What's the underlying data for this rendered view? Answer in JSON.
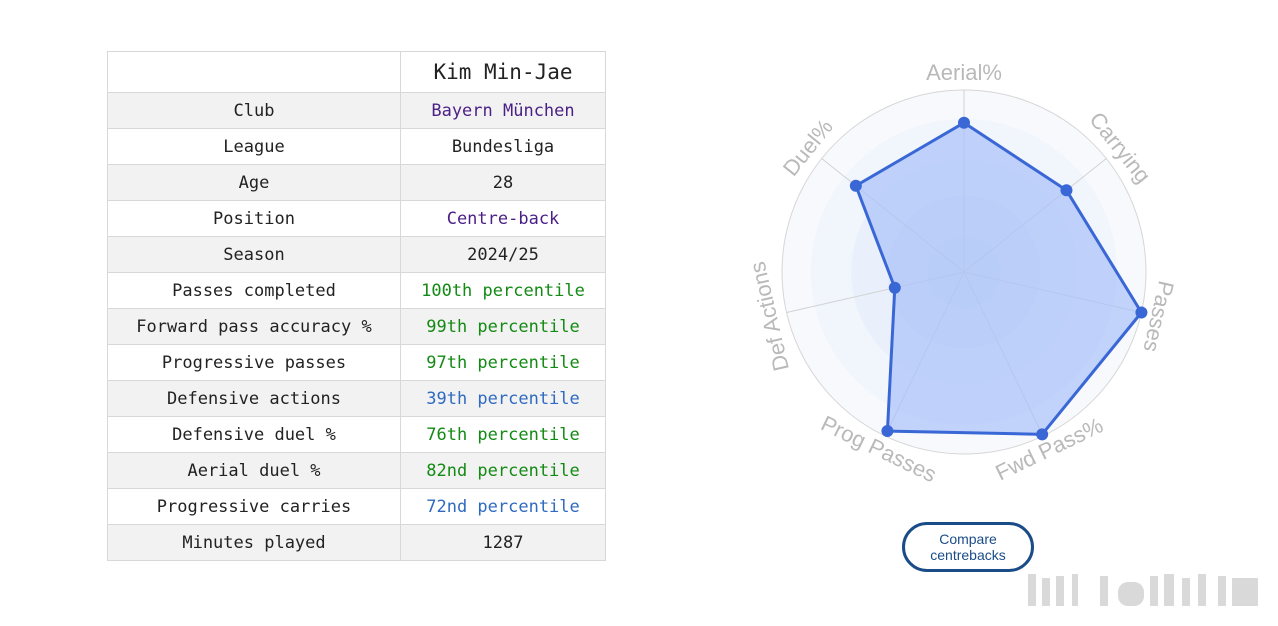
{
  "player": {
    "name": "Kim Min-Jae"
  },
  "table": {
    "rows": [
      {
        "label": "Club",
        "value": "Bayern München",
        "tone": "purple"
      },
      {
        "label": "League",
        "value": "Bundesliga",
        "tone": "plain"
      },
      {
        "label": "Age",
        "value": "28",
        "tone": "plain"
      },
      {
        "label": "Position",
        "value": "Centre-back",
        "tone": "purple"
      },
      {
        "label": "Season",
        "value": "2024/25",
        "tone": "plain"
      },
      {
        "label": "Passes completed",
        "value": "100th percentile",
        "tone": "green"
      },
      {
        "label": "Forward pass accuracy %",
        "value": "99th percentile",
        "tone": "green"
      },
      {
        "label": "Progressive passes",
        "value": "97th percentile",
        "tone": "green"
      },
      {
        "label": "Defensive actions",
        "value": "39th percentile",
        "tone": "blue"
      },
      {
        "label": "Defensive duel %",
        "value": "76th percentile",
        "tone": "green"
      },
      {
        "label": "Aerial duel %",
        "value": "82nd percentile",
        "tone": "green"
      },
      {
        "label": "Progressive carries",
        "value": "72nd percentile",
        "tone": "blue"
      },
      {
        "label": "Minutes played",
        "value": "1287",
        "tone": "plain"
      }
    ]
  },
  "chart_data": {
    "type": "radar",
    "axes": [
      "Aerial%",
      "Carrying",
      "Passes",
      "Fwd Pass%",
      "Prog Passes",
      "Def Actions",
      "Duel%"
    ],
    "values": [
      82,
      72,
      100,
      99,
      97,
      39,
      76
    ],
    "range": [
      0,
      100
    ],
    "grid": true,
    "colors": {
      "line": "#3a67d6",
      "fill": "#a9c2fa",
      "point": "#3a67d6"
    }
  },
  "compare_button": {
    "label": "Compare centrebacks"
  }
}
